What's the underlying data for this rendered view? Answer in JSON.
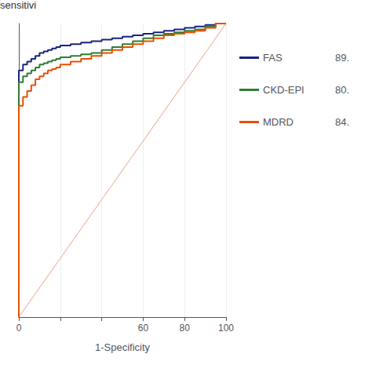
{
  "chart_data": {
    "type": "line",
    "xlabel": "1-Specificity",
    "xlim": [
      0,
      100
    ],
    "xticks": [
      0,
      {
        "value": 20,
        "label": ""
      },
      {
        "value": 40,
        "label": ""
      },
      60,
      80,
      100
    ],
    "ylim": [
      0,
      1
    ],
    "yticks": [],
    "tick_labels": "x",
    "grid": true,
    "legend_title": "sensitivi",
    "series": [
      {
        "color": "#e8a090",
        "x": [
          0,
          100
        ],
        "values": [
          0,
          1
        ]
      },
      {
        "name": "FAS",
        "color": "#1a237e",
        "legend_value": "89.",
        "x": [
          0,
          0,
          2,
          2,
          4,
          4,
          6,
          6,
          8,
          8,
          10,
          10,
          12,
          12,
          14,
          14,
          16,
          16,
          18,
          18,
          20,
          20,
          25,
          25,
          30,
          30,
          35,
          35,
          40,
          40,
          45,
          45,
          50,
          50,
          55,
          55,
          60,
          60,
          65,
          65,
          70,
          70,
          75,
          75,
          80,
          80,
          85,
          85,
          90,
          90,
          95,
          95,
          100,
          100
        ],
        "values": [
          0,
          0.84,
          0.84,
          0.86,
          0.86,
          0.87,
          0.87,
          0.88,
          0.88,
          0.89,
          0.89,
          0.9,
          0.9,
          0.905,
          0.905,
          0.91,
          0.91,
          0.915,
          0.915,
          0.92,
          0.92,
          0.925,
          0.925,
          0.93,
          0.93,
          0.935,
          0.935,
          0.94,
          0.94,
          0.945,
          0.945,
          0.95,
          0.95,
          0.955,
          0.955,
          0.96,
          0.96,
          0.965,
          0.965,
          0.97,
          0.97,
          0.975,
          0.975,
          0.98,
          0.98,
          0.985,
          0.985,
          0.99,
          0.99,
          0.995,
          0.995,
          1.0,
          1.0,
          1.0
        ]
      },
      {
        "name": "CKD-EPI",
        "color": "#2e7d32",
        "legend_value": "80.",
        "x": [
          0,
          0,
          2,
          2,
          4,
          4,
          6,
          6,
          8,
          8,
          10,
          10,
          12,
          12,
          14,
          14,
          16,
          16,
          18,
          18,
          20,
          20,
          25,
          25,
          30,
          30,
          35,
          35,
          40,
          40,
          45,
          45,
          50,
          50,
          55,
          55,
          60,
          60,
          65,
          65,
          70,
          70,
          75,
          75,
          80,
          80,
          85,
          85,
          90,
          90,
          95,
          95,
          100,
          100
        ],
        "values": [
          0,
          0.8,
          0.8,
          0.82,
          0.82,
          0.83,
          0.83,
          0.84,
          0.84,
          0.85,
          0.85,
          0.86,
          0.86,
          0.865,
          0.865,
          0.87,
          0.87,
          0.875,
          0.875,
          0.88,
          0.88,
          0.885,
          0.885,
          0.89,
          0.89,
          0.895,
          0.895,
          0.9,
          0.9,
          0.91,
          0.91,
          0.92,
          0.92,
          0.93,
          0.93,
          0.94,
          0.94,
          0.95,
          0.95,
          0.96,
          0.96,
          0.965,
          0.965,
          0.97,
          0.97,
          0.975,
          0.975,
          0.98,
          0.98,
          0.99,
          0.99,
          1.0,
          1.0,
          1.0
        ]
      },
      {
        "name": "MDRD",
        "color": "#e65100",
        "legend_value": "84.",
        "x": [
          0,
          0,
          2,
          2,
          4,
          4,
          6,
          6,
          8,
          8,
          10,
          10,
          12,
          12,
          14,
          14,
          16,
          16,
          18,
          18,
          20,
          20,
          25,
          25,
          30,
          30,
          35,
          35,
          40,
          40,
          45,
          45,
          50,
          50,
          55,
          55,
          60,
          60,
          65,
          65,
          70,
          70,
          75,
          75,
          80,
          80,
          85,
          85,
          90,
          90,
          95,
          95,
          100,
          100
        ],
        "values": [
          0,
          0.72,
          0.72,
          0.75,
          0.75,
          0.77,
          0.77,
          0.79,
          0.79,
          0.81,
          0.81,
          0.82,
          0.82,
          0.83,
          0.83,
          0.84,
          0.84,
          0.845,
          0.845,
          0.85,
          0.85,
          0.86,
          0.86,
          0.87,
          0.87,
          0.88,
          0.88,
          0.89,
          0.89,
          0.9,
          0.9,
          0.91,
          0.91,
          0.92,
          0.92,
          0.93,
          0.93,
          0.94,
          0.94,
          0.95,
          0.95,
          0.96,
          0.96,
          0.965,
          0.965,
          0.97,
          0.97,
          0.975,
          0.975,
          0.985,
          0.985,
          1.0,
          1.0,
          1.0
        ]
      }
    ]
  }
}
